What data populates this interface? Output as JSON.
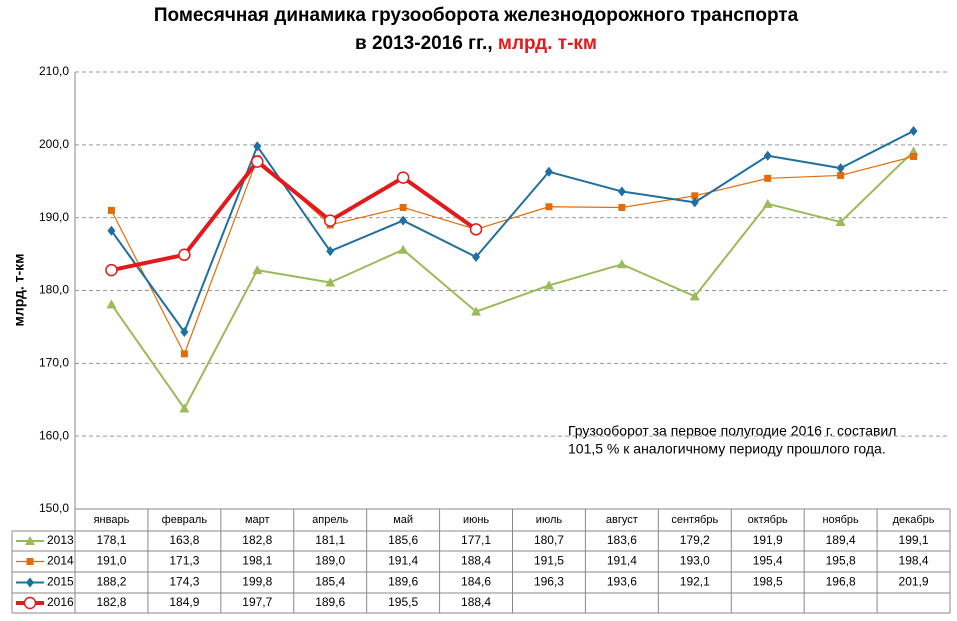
{
  "chart_data": {
    "type": "line",
    "title": "Помесячная динамика грузооборота железнодорожного транспорта",
    "title_line2": "в 2013-2016 гг.,",
    "title_unit": "млрд. т-км",
    "y_label": "млрд. т-км",
    "annotation": [
      "Грузооборот за первое полугодие 2016 г. составил",
      "101,5 % к аналогичному периоду прошлого года."
    ],
    "categories": [
      "январь",
      "февраль",
      "март",
      "апрель",
      "май",
      "июнь",
      "июль",
      "август",
      "сентябрь",
      "октябрь",
      "ноябрь",
      "декабрь"
    ],
    "series": [
      {
        "name": "2013",
        "color": "#9bbb59",
        "marker": "triangle",
        "line_width": 2,
        "values": [
          178.1,
          163.8,
          182.8,
          181.1,
          185.6,
          177.1,
          180.7,
          183.6,
          179.2,
          191.9,
          189.4,
          199.1
        ],
        "value_labels": [
          "178,1",
          "163,8",
          "182,8",
          "181,1",
          "185,6",
          "177,1",
          "180,7",
          "183,6",
          "179,2",
          "191,9",
          "189,4",
          "199,1"
        ]
      },
      {
        "name": "2014",
        "color": "#e36c09",
        "marker": "square",
        "line_width": 1.2,
        "values": [
          191.0,
          171.3,
          198.1,
          189.0,
          191.4,
          188.4,
          191.5,
          191.4,
          193.0,
          195.4,
          195.8,
          198.4
        ],
        "value_labels": [
          "191,0",
          "171,3",
          "198,1",
          "189,0",
          "191,4",
          "188,4",
          "191,5",
          "191,4",
          "193,0",
          "195,4",
          "195,8",
          "198,4"
        ]
      },
      {
        "name": "2015",
        "color": "#1f6fa0",
        "marker": "diamond",
        "line_width": 2,
        "values": [
          188.2,
          174.3,
          199.8,
          185.4,
          189.6,
          184.6,
          196.3,
          193.6,
          192.1,
          198.5,
          196.8,
          201.9
        ],
        "value_labels": [
          "188,2",
          "174,3",
          "199,8",
          "185,4",
          "189,6",
          "184,6",
          "196,3",
          "193,6",
          "192,1",
          "198,5",
          "196,8",
          "201,9"
        ]
      },
      {
        "name": "2016",
        "color": "#e31a1c",
        "marker": "circle",
        "line_width": 4,
        "values": [
          182.8,
          184.9,
          197.7,
          189.6,
          195.5,
          188.4,
          null,
          null,
          null,
          null,
          null,
          null
        ],
        "value_labels": [
          "182,8",
          "184,9",
          "197,7",
          "189,6",
          "195,5",
          "188,4",
          null,
          null,
          null,
          null,
          null,
          null
        ]
      }
    ],
    "ylim": [
      150,
      210
    ],
    "yticks": [
      {
        "value": 150,
        "label": "150,0"
      },
      {
        "value": 160,
        "label": "160,0"
      },
      {
        "value": 170,
        "label": "170,0"
      },
      {
        "value": 180,
        "label": "180,0"
      },
      {
        "value": 190,
        "label": "190,0"
      },
      {
        "value": 200,
        "label": "200,0"
      },
      {
        "value": 210,
        "label": "210,0"
      }
    ],
    "grid": true
  }
}
